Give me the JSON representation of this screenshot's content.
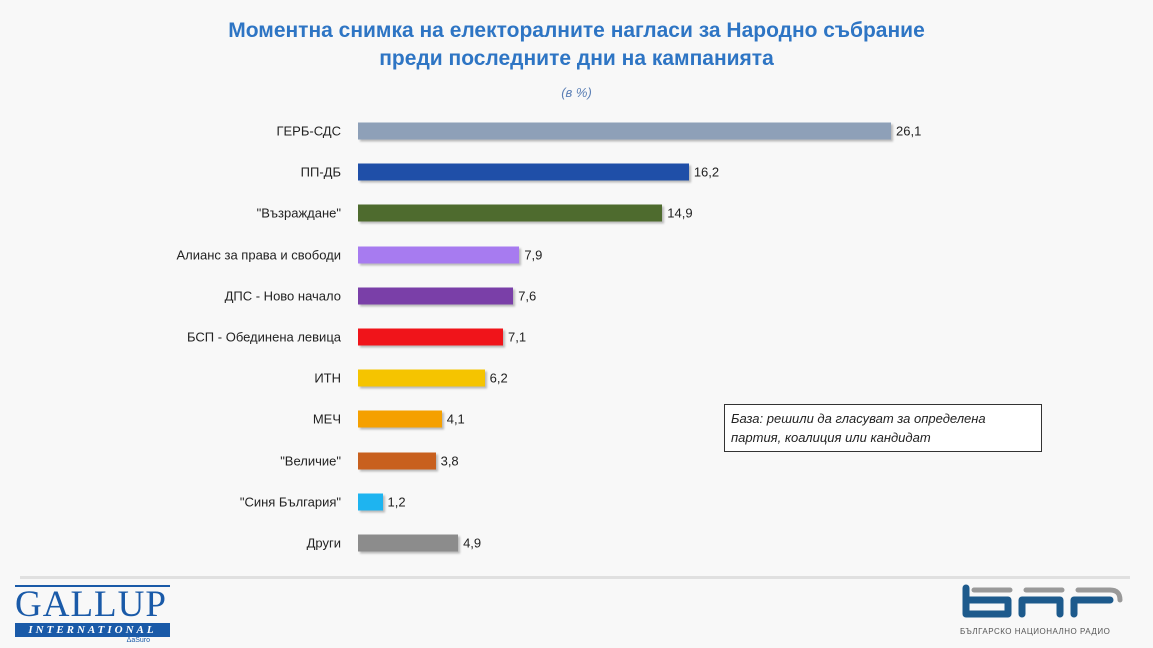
{
  "chart_data": {
    "type": "bar",
    "orientation": "horizontal",
    "title": "Моментна снимка на електоралните нагласи за Народно събрание",
    "subtitle": "преди последните дни на кампанията",
    "unit": "(в %)",
    "categories": [
      "ГЕРБ-СДС",
      "ПП-ДБ",
      "\"Възраждане\"",
      "Алианс за права и свободи",
      "ДПС - Ново начало",
      "БСП - Обединена левица",
      "ИТН",
      "МЕЧ",
      "\"Величие\"",
      "\"Синя България\"",
      "Други"
    ],
    "values": [
      26.1,
      16.2,
      14.9,
      7.9,
      7.6,
      7.1,
      6.2,
      4.1,
      3.8,
      1.2,
      4.9
    ],
    "value_labels": [
      "26,1",
      "16,2",
      "14,9",
      "7,9",
      "7,6",
      "7,1",
      "6,2",
      "4,1",
      "3,8",
      "1,2",
      "4,9"
    ],
    "colors": [
      "#8ea0b8",
      "#1f4fa8",
      "#4e6b2e",
      "#a77bf0",
      "#7a3fa8",
      "#f0141a",
      "#f5c400",
      "#f5a000",
      "#c8601e",
      "#1eb4f0",
      "#8c8c8c"
    ],
    "annotation": "База: решили да гласуват за определена партия, коалиция или кандидат",
    "grid": false
  },
  "logos": {
    "gallup": {
      "name": "GALLUP",
      "sub": "INTERNATIONAL",
      "tag": "ΔaSuro"
    },
    "bnr": {
      "name": "БНР",
      "sub": "БЪЛГАРСКО НАЦИОНАЛНО РАДИО"
    }
  }
}
